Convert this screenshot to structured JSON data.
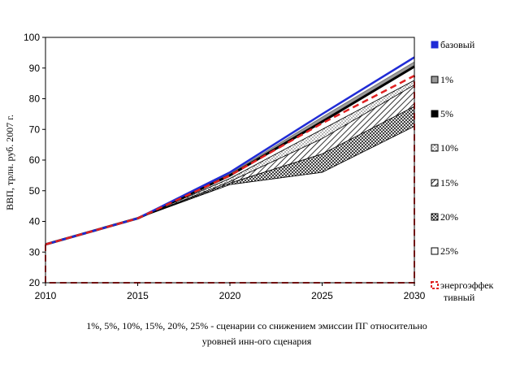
{
  "chart_data": {
    "type": "area",
    "ylabel": "ВВП, трлн. руб. 2007 г.",
    "xlabel": "",
    "x": [
      2010,
      2015,
      2020,
      2025,
      2030
    ],
    "ylim": [
      20,
      100
    ],
    "yticks": [
      20,
      30,
      40,
      50,
      60,
      70,
      80,
      90,
      100
    ],
    "grid": false,
    "legend_position": "right",
    "caption_line1": "1%, 5%, 10%, 15%, 20%, 25% - сценарии со снижением эмиссии ПГ относительно",
    "caption_line2": "уровней инн-ого сценария",
    "series": [
      {
        "name": "базовый",
        "values": [
          32.5,
          41,
          56,
          75,
          93.5
        ],
        "color": "#1f2bd6"
      },
      {
        "name": "1%",
        "values": [
          32.5,
          41,
          55.5,
          74,
          92
        ],
        "color": "#999999"
      },
      {
        "name": "5%",
        "values": [
          32.5,
          41,
          55,
          72.5,
          90.5
        ],
        "color": "#000000"
      },
      {
        "name": "10%",
        "values": [
          32.5,
          41,
          54,
          70,
          86
        ],
        "color": "#ffffff"
      },
      {
        "name": "15%",
        "values": [
          32.5,
          41,
          53,
          67,
          84.5
        ],
        "color": "#000000"
      },
      {
        "name": "20%",
        "values": [
          32.5,
          41,
          52.5,
          62,
          77.5
        ],
        "color": "#000000"
      },
      {
        "name": "25%",
        "values": [
          32.5,
          41,
          52,
          56,
          71
        ],
        "color": "#ffffff"
      },
      {
        "name": "энергоэффек тивный",
        "values": [
          32.5,
          41,
          55,
          72,
          87.5
        ],
        "color": "#e02020"
      }
    ]
  }
}
